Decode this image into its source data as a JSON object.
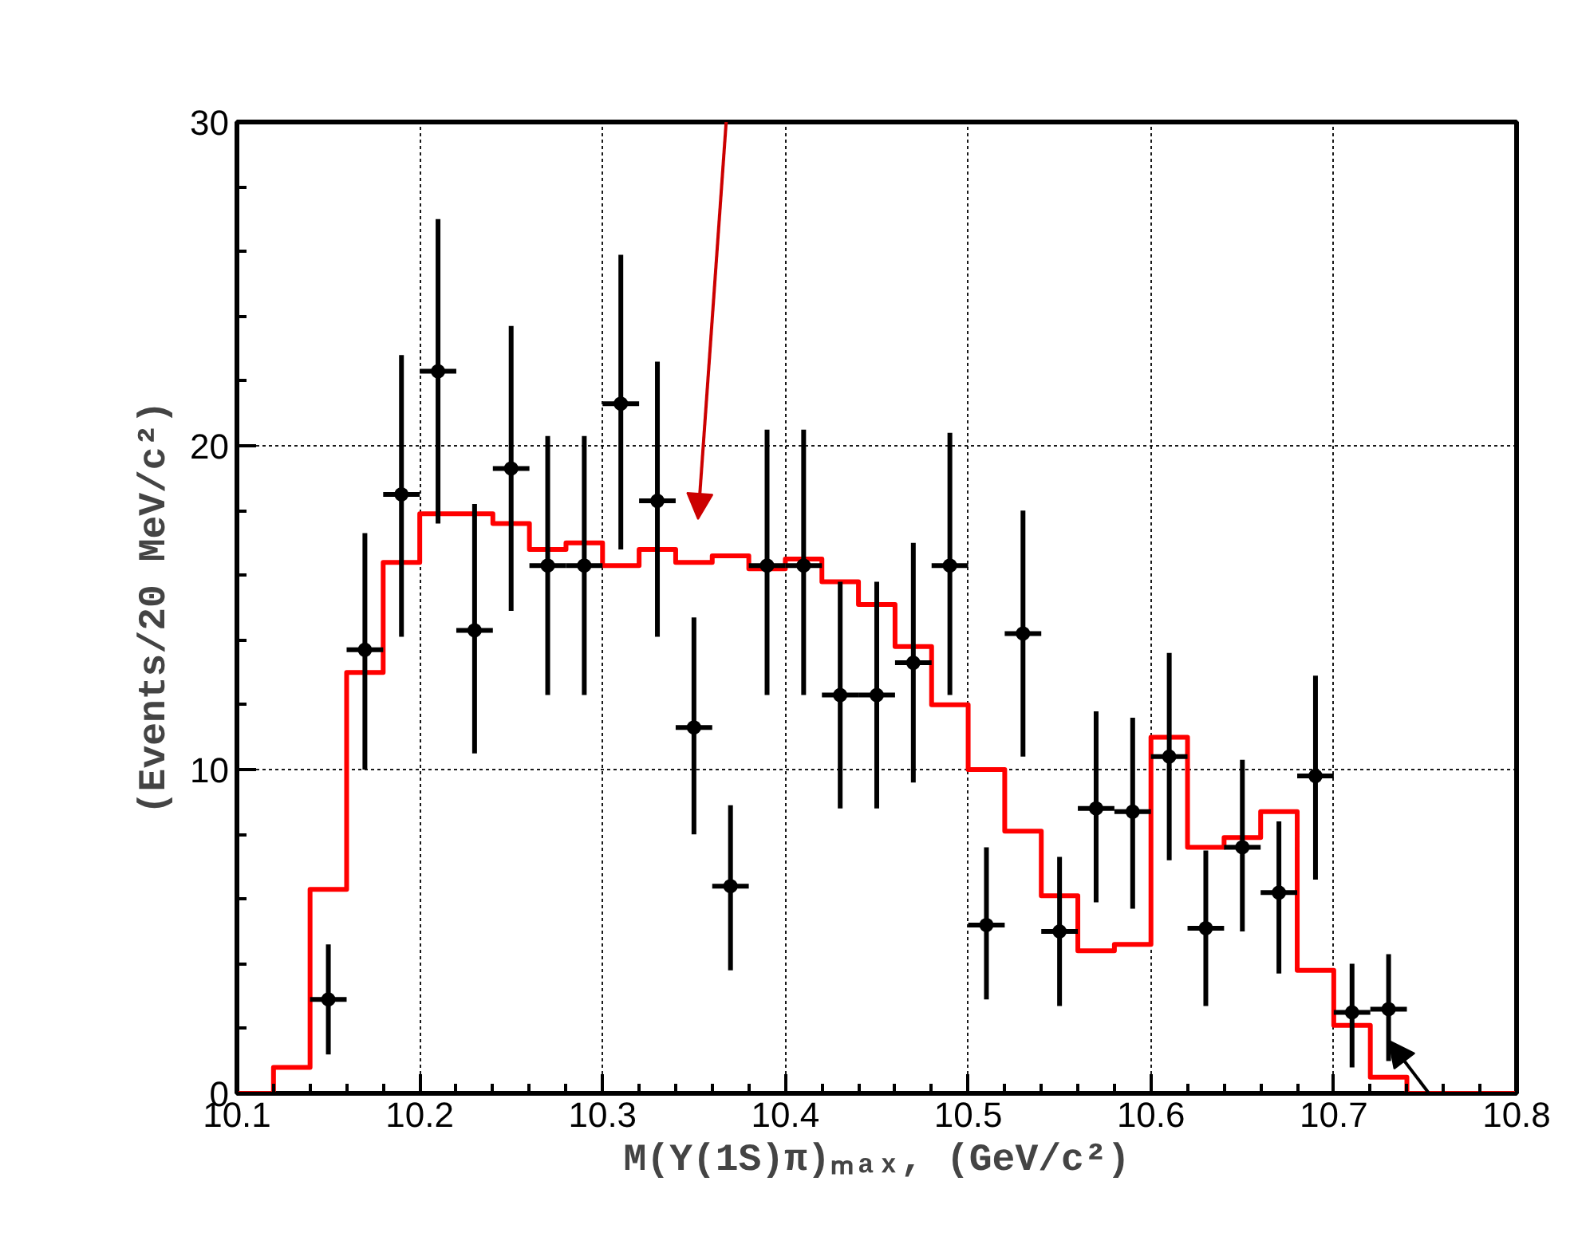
{
  "chart_data": {
    "type": "scatter",
    "xlabel": "M(Υ(1S)π)ₘₐₓ, (GeV/c²)",
    "ylabel": "(Events/20 MeV/c²)",
    "xlim": [
      10.1,
      10.8
    ],
    "xticks": [
      10.1,
      10.2,
      10.3,
      10.4,
      10.5,
      10.6,
      10.7,
      10.8
    ],
    "ylim": [
      0,
      30
    ],
    "yticks": [
      0,
      10,
      20,
      30
    ],
    "grid": true,
    "marker": "circle",
    "series": [
      {
        "type": "histogram",
        "color": "#ff0000",
        "bins": [
          10.1,
          10.12,
          10.14,
          10.16,
          10.18,
          10.2,
          10.22,
          10.24,
          10.26,
          10.28,
          10.3,
          10.32,
          10.34,
          10.36,
          10.38,
          10.4,
          10.42,
          10.44,
          10.46,
          10.48,
          10.5,
          10.52,
          10.54,
          10.56,
          10.58,
          10.6,
          10.62,
          10.64,
          10.66,
          10.68,
          10.7,
          10.72,
          10.74,
          10.76,
          10.78,
          10.8
        ],
        "values": [
          0,
          0.8,
          6.3,
          13.0,
          16.4,
          17.9,
          17.9,
          17.6,
          16.8,
          17.0,
          16.3,
          16.8,
          16.4,
          16.6,
          16.2,
          16.5,
          15.8,
          15.1,
          13.8,
          12.0,
          10.0,
          8.1,
          6.1,
          4.4,
          4.6,
          11.0,
          7.6,
          7.9,
          8.7,
          3.8,
          2.1,
          0.5,
          0,
          0,
          0
        ]
      },
      {
        "type": "scatter",
        "color": "#000000",
        "x": [
          10.15,
          10.17,
          10.19,
          10.21,
          10.23,
          10.25,
          10.27,
          10.29,
          10.31,
          10.33,
          10.35,
          10.37,
          10.39,
          10.41,
          10.43,
          10.45,
          10.47,
          10.49,
          10.51,
          10.53,
          10.55,
          10.57,
          10.59,
          10.61,
          10.63,
          10.65,
          10.67,
          10.69,
          10.71,
          10.73
        ],
        "values": [
          2.9,
          13.7,
          18.5,
          22.3,
          14.3,
          19.3,
          16.3,
          16.3,
          21.3,
          18.3,
          11.3,
          6.4,
          16.3,
          16.3,
          12.3,
          12.3,
          13.3,
          16.3,
          5.2,
          14.2,
          5.0,
          8.8,
          8.7,
          10.4,
          5.1,
          7.6,
          6.2,
          9.8,
          2.5,
          2.6
        ],
        "errors": [
          [
            1.2,
            4.6
          ],
          [
            10.0,
            17.3
          ],
          [
            14.1,
            22.8
          ],
          [
            17.6,
            27.0
          ],
          [
            10.5,
            18.2
          ],
          [
            14.9,
            23.7
          ],
          [
            12.3,
            20.3
          ],
          [
            12.3,
            20.3
          ],
          [
            16.8,
            25.9
          ],
          [
            14.1,
            22.6
          ],
          [
            8.0,
            14.7
          ],
          [
            3.8,
            8.9
          ],
          [
            12.3,
            20.5
          ],
          [
            12.3,
            20.5
          ],
          [
            8.8,
            15.8
          ],
          [
            8.8,
            15.8
          ],
          [
            9.6,
            17.0
          ],
          [
            12.3,
            20.4
          ],
          [
            2.9,
            7.6
          ],
          [
            10.4,
            18.0
          ],
          [
            2.7,
            7.3
          ],
          [
            5.9,
            11.8
          ],
          [
            5.7,
            11.6
          ],
          [
            7.2,
            13.6
          ],
          [
            2.7,
            7.5
          ],
          [
            5.0,
            10.3
          ],
          [
            3.7,
            8.4
          ],
          [
            6.6,
            12.9
          ],
          [
            0.8,
            4.0
          ],
          [
            1.0,
            4.3
          ]
        ],
        "xerrors": [
          0.01,
          0.01,
          0.01,
          0.01,
          0.01,
          0.01,
          0.01,
          0.01,
          0.01,
          0.01,
          0.01,
          0.01,
          0.01,
          0.01,
          0.01,
          0.01,
          0.01,
          0.01,
          0.01,
          0.01,
          0.01,
          0.01,
          0.01,
          0.01,
          0.01,
          0.01,
          0.01,
          0.01,
          0.01,
          0.01
        ]
      }
    ]
  }
}
